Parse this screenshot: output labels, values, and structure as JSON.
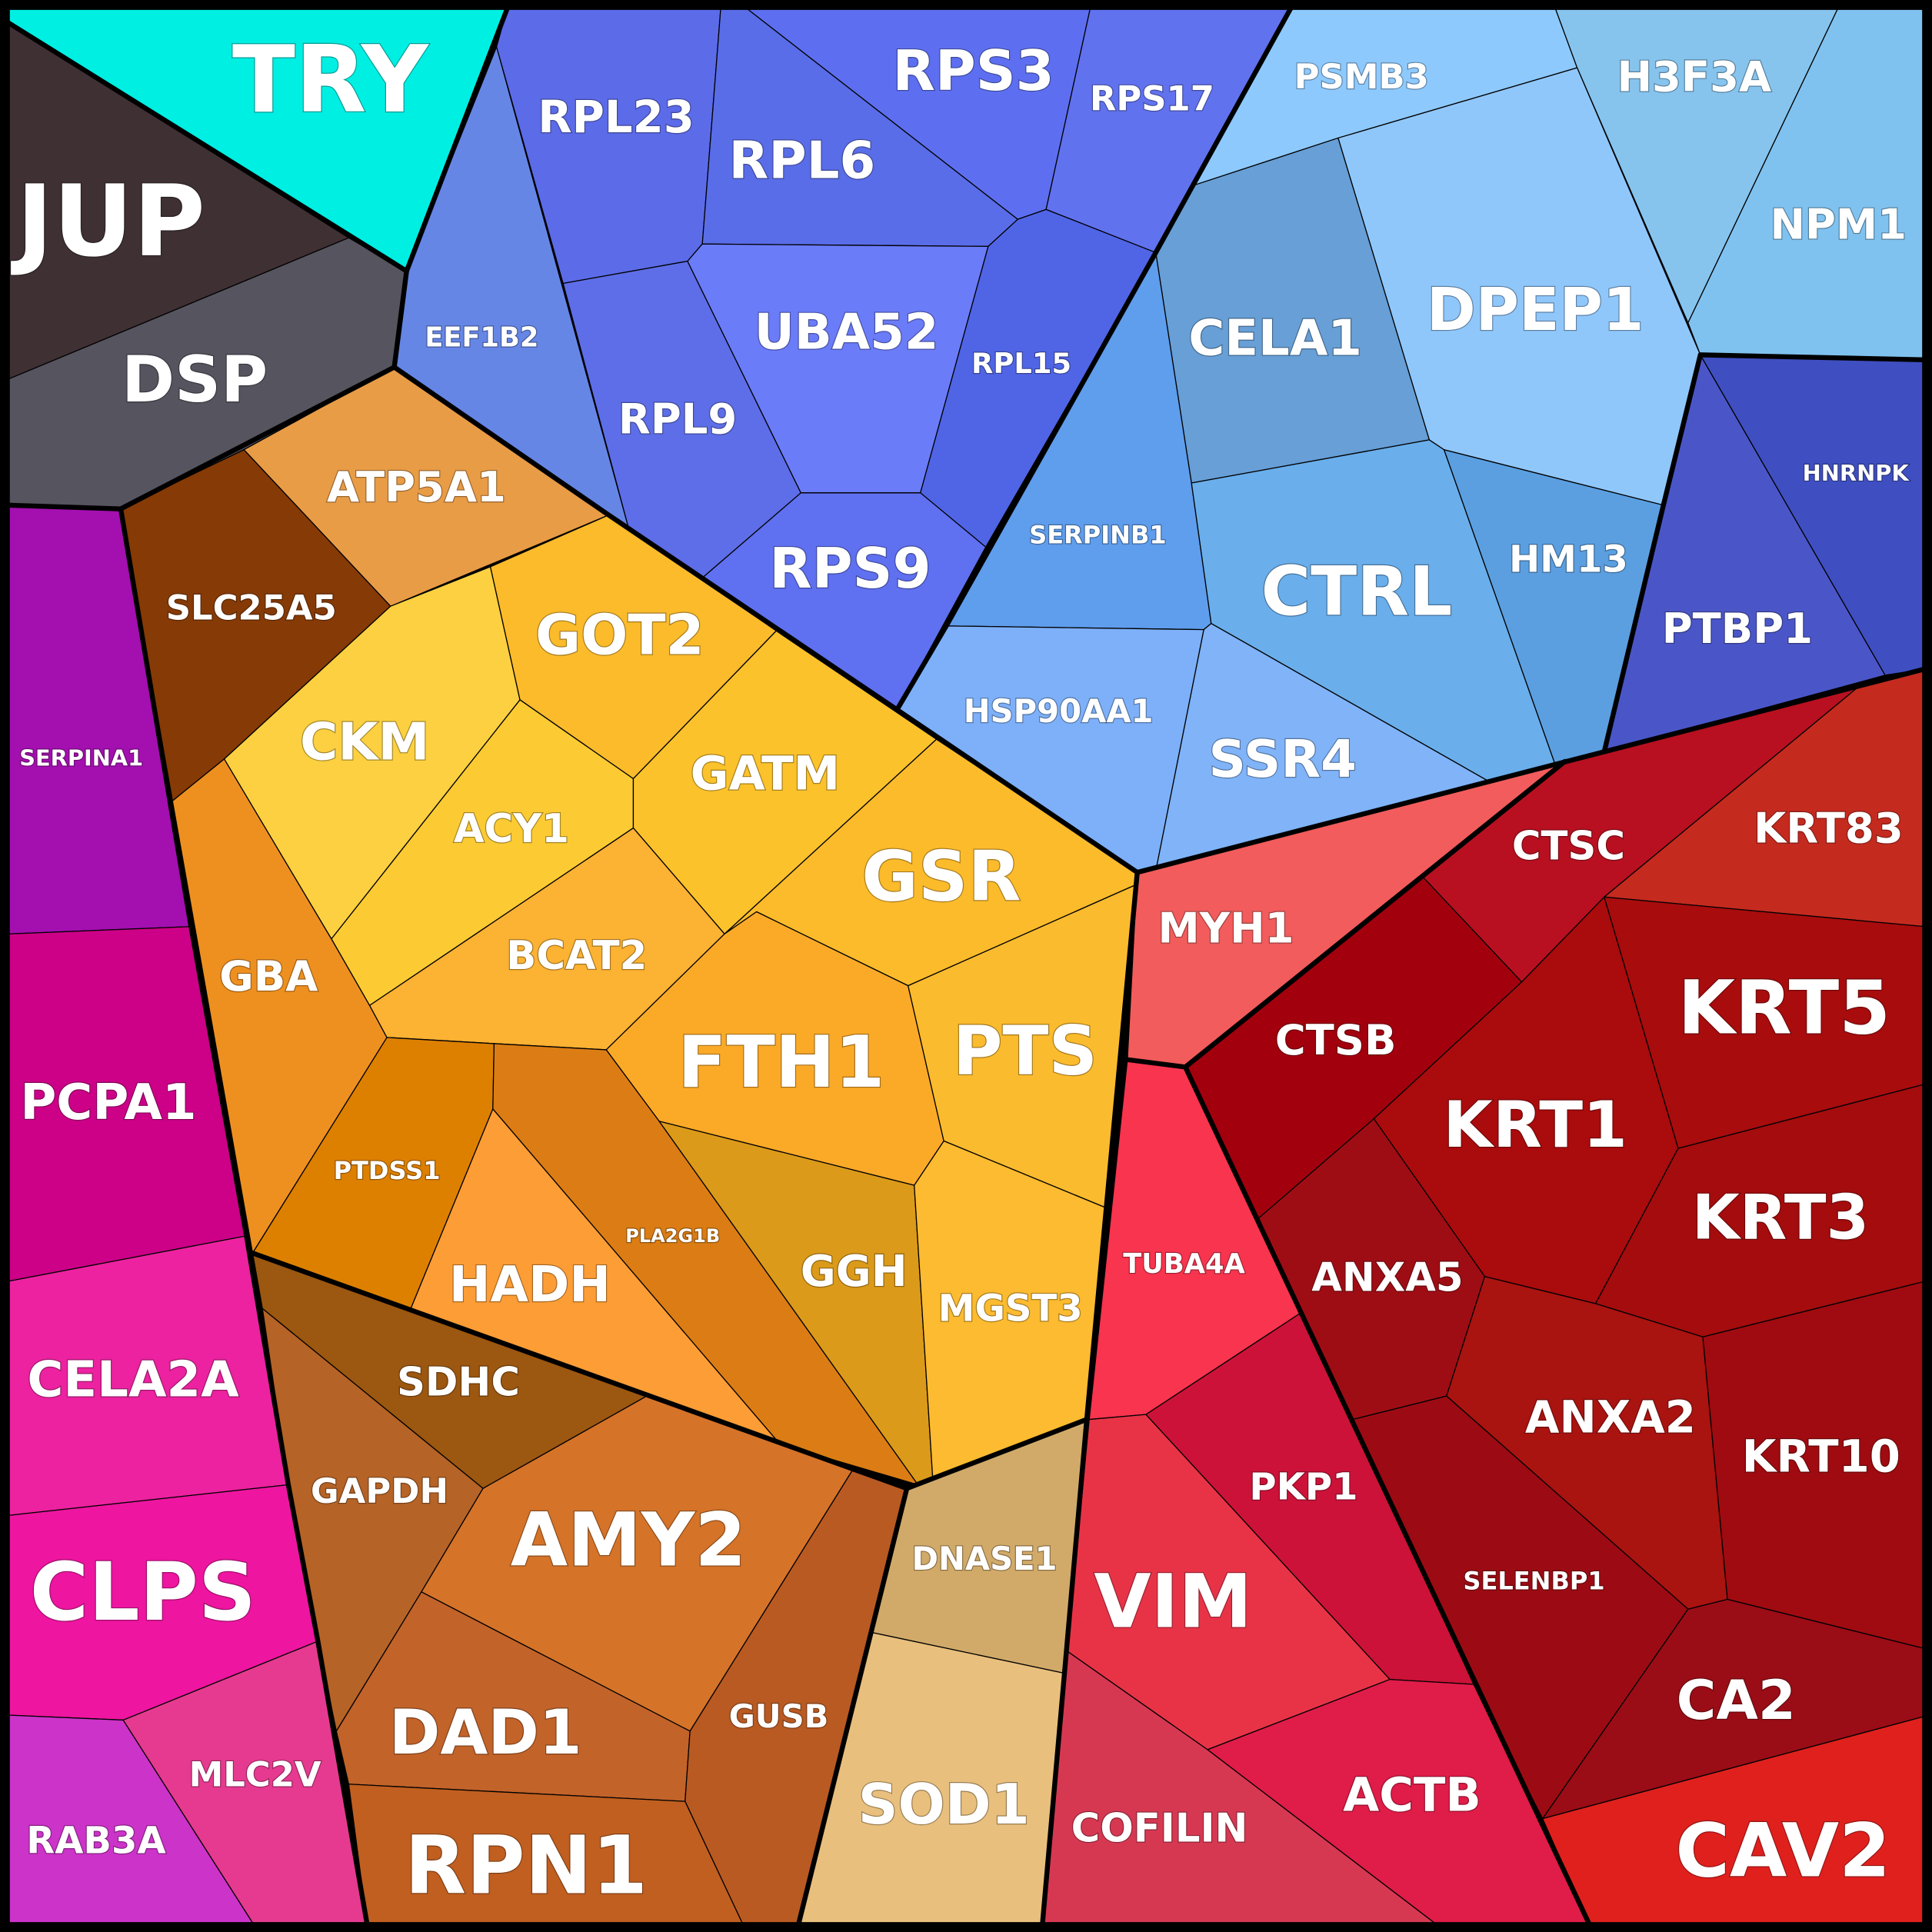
{
  "labels": [
    "TRY",
    "JUP",
    "DSP",
    "SERPINA1",
    "PCPA1",
    "CELA2A",
    "CLPS",
    "RAB3A",
    "MLC2V",
    "SLC25A5",
    "ATP5A1",
    "GBA",
    "CKM",
    "GOT2",
    "ACY1",
    "GATM",
    "BCAT2",
    "GSR",
    "FTH1",
    "PTS",
    "PTDSS1",
    "HADH",
    "PLA2G1B",
    "GGH",
    "MGST3",
    "SDHC",
    "GAPDH",
    "AMY2",
    "DAD1",
    "GUSB",
    "RPN1",
    "DNASE1",
    "SOD1",
    "EEF1B2",
    "RPL23",
    "RPL9",
    "RPL6",
    "RPS3",
    "RPS17",
    "UBA52",
    "RPL15",
    "RPS9",
    "PSMB3",
    "H3F3A",
    "NPM1",
    "DPEP1",
    "CELA1",
    "SERPINB1",
    "HSP90AA1",
    "CTRL",
    "HM13",
    "SSR4",
    "PTBP1",
    "HNRNPK",
    "MYH1",
    "CTSC",
    "KRT83",
    "CTSB",
    "KRT1",
    "KRT5",
    "KRT3",
    "ANXA5",
    "ANXA2",
    "KRT10",
    "SELENBP1",
    "CA2",
    "CAV2",
    "TUBA4A",
    "PKP1",
    "VIM",
    "ACTB",
    "COFILIN"
  ]
}
